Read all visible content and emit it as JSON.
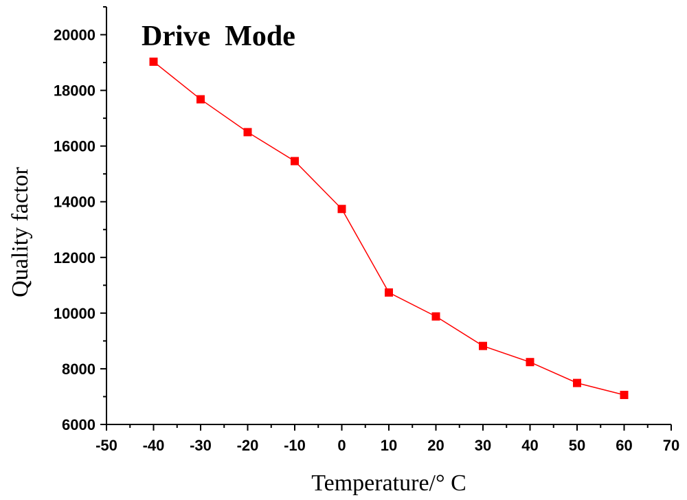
{
  "chart_data": {
    "type": "line",
    "title": "Drive  Mode",
    "xlabel": "Temperature/° C",
    "ylabel": "Quality factor",
    "xlim": [
      -50,
      70
    ],
    "ylim": [
      6000,
      21000
    ],
    "xticks": [
      -50,
      -40,
      -30,
      -20,
      -10,
      0,
      10,
      20,
      30,
      40,
      50,
      60,
      70
    ],
    "yticks": [
      6000,
      8000,
      10000,
      12000,
      14000,
      16000,
      18000,
      20000
    ],
    "grid": false,
    "series": [
      {
        "x": [
          -40,
          -30,
          -20,
          -10,
          0,
          10,
          20,
          30,
          40,
          50,
          60
        ],
        "y": [
          19030,
          17680,
          16500,
          15460,
          13740,
          10740,
          9880,
          8820,
          8240,
          7490,
          7060
        ],
        "color": "#ff0000",
        "marker": "square"
      }
    ]
  }
}
